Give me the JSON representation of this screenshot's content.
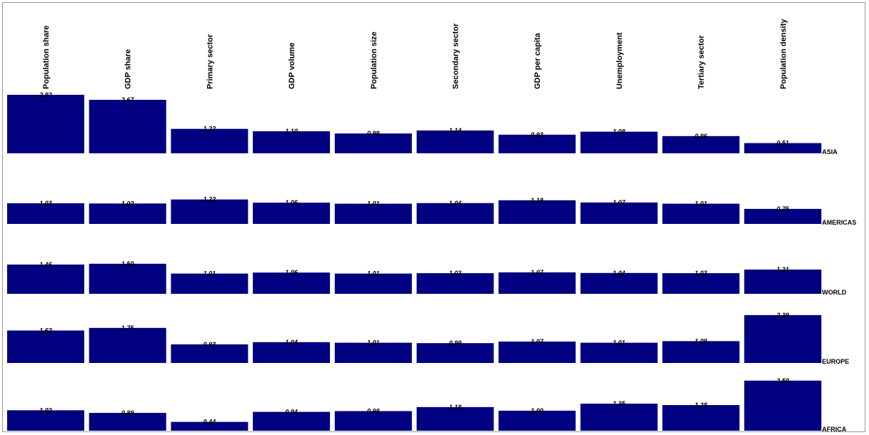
{
  "chart_data": {
    "type": "bar",
    "columns": [
      "Population share",
      "GDP share",
      "Primary sector",
      "GDP volume",
      "Population size",
      "Secondary sector",
      "GDP per capita",
      "Unemployment",
      "Tertiary sector",
      "Population density"
    ],
    "rows": [
      {
        "name": "ASIA",
        "values": [
          2.92,
          2.67,
          1.22,
          1.1,
          0.99,
          1.14,
          0.93,
          1.08,
          0.86,
          0.51
        ],
        "labels": [
          "2.92",
          "2.67",
          "1.22",
          "1.10",
          "0.99",
          "1.14",
          "0.93",
          "1.08",
          "0.86",
          "0.51"
        ]
      },
      {
        "name": "AMERICAS",
        "values": [
          1.03,
          1.02,
          1.22,
          1.06,
          1.01,
          1.04,
          1.18,
          1.07,
          1.01,
          0.75
        ],
        "labels": [
          "1.03",
          "1.02",
          "1.22",
          "1.06",
          "1.01",
          "1.04",
          "1.18",
          "1.07",
          "1.01",
          "0.75"
        ]
      },
      {
        "name": "WORLD",
        "values": [
          1.46,
          1.5,
          1.01,
          1.06,
          1.01,
          1.03,
          1.07,
          1.04,
          1.03,
          1.21
        ],
        "labels": [
          "1.46",
          "1.50",
          "1.01",
          "1.06",
          "1.01",
          "1.03",
          "1.07",
          "1.04",
          "1.03",
          "1.21"
        ]
      },
      {
        "name": "EUROPE",
        "values": [
          1.62,
          1.75,
          0.93,
          1.04,
          1.01,
          0.99,
          1.07,
          1.01,
          1.09,
          2.39
        ],
        "labels": [
          "1.62",
          "1.75",
          "0.93",
          "1.04",
          "1.01",
          "0.99",
          "1.07",
          "1.01",
          "1.09",
          "2.39"
        ]
      },
      {
        "name": "AFRICA",
        "values": [
          1.02,
          0.89,
          0.44,
          0.94,
          0.98,
          1.18,
          1.0,
          1.35,
          1.28,
          2.5
        ],
        "labels": [
          "1.02",
          "0.89",
          "0.44",
          "0.94",
          "0.98",
          "1.18",
          "1.00",
          "1.35",
          "1.28",
          "2.50"
        ]
      }
    ],
    "bar_color": "#000080",
    "grid": false
  }
}
